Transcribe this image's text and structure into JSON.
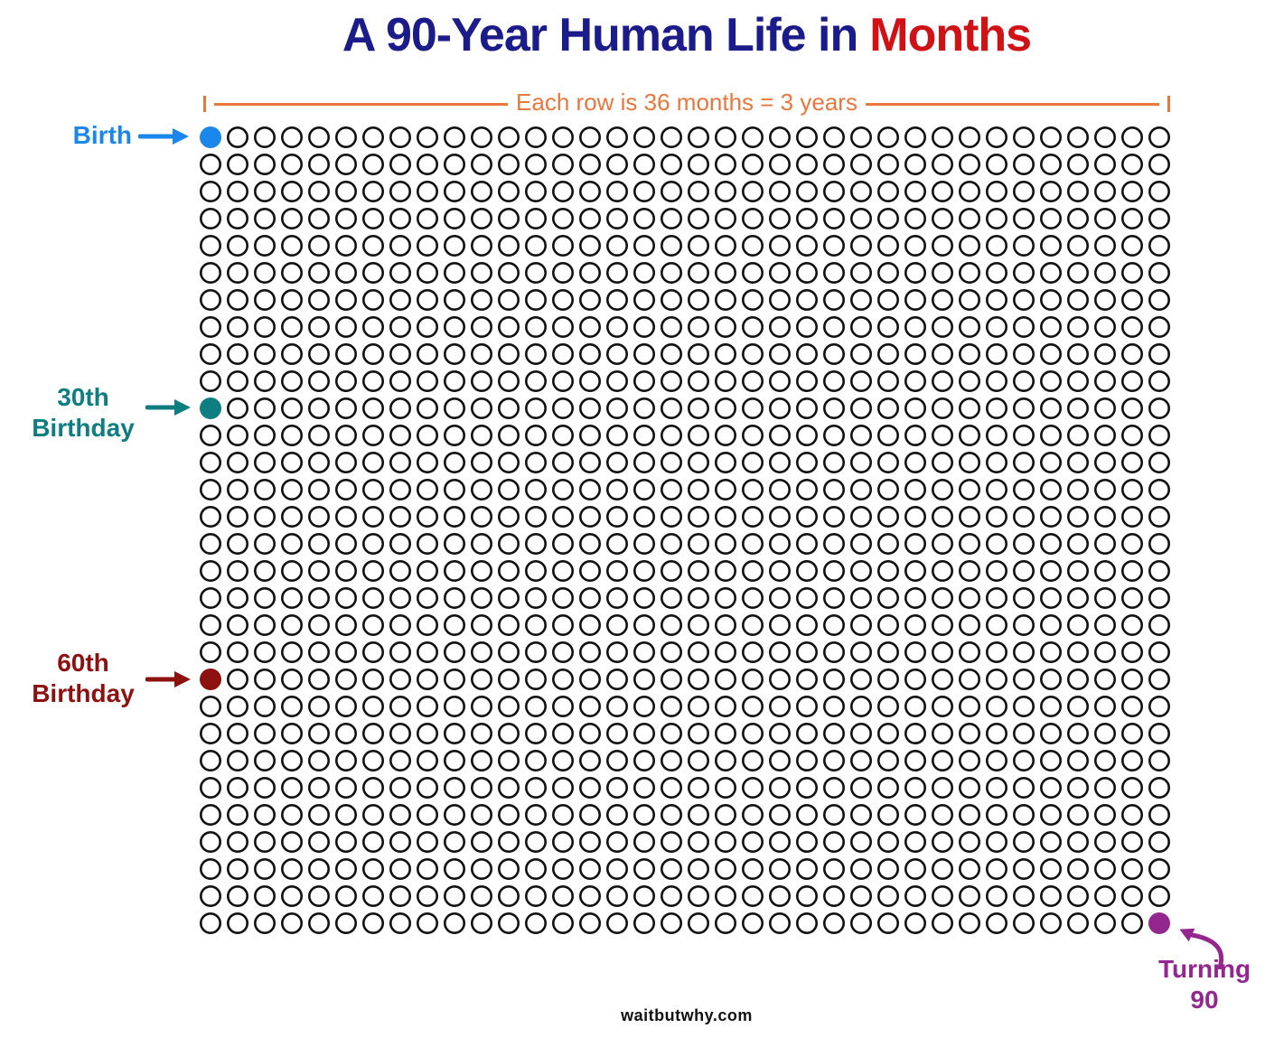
{
  "title": {
    "prefix": "A 90-Year Human Life in",
    "accent": "Months"
  },
  "colors": {
    "title_navy": "#1B1B8A",
    "title_red": "#D01217",
    "ruler_orange": "#E8773C",
    "circle_outline": "#111111",
    "footer_black": "#111111",
    "background": "#FFFFFF"
  },
  "ruler": {
    "label": "Each row is 36 months = 3 years"
  },
  "annotations": {
    "birth": {
      "label": "Birth",
      "color": "#1B87EA",
      "month_index": 0
    },
    "thirty": {
      "line1": "30th",
      "line2": "Birthday",
      "color": "#0F7E80",
      "month_index": 360
    },
    "sixty": {
      "line1": "60th",
      "line2": "Birthday",
      "color": "#8E1111",
      "month_index": 720
    },
    "ninety": {
      "line1": "Turning",
      "line2": "90",
      "color": "#93278F",
      "month_index": 1079
    }
  },
  "footer": {
    "text": "waitbutwhy.com"
  },
  "chart_data": {
    "type": "waffle",
    "title": "A 90-Year Human Life in Months",
    "unit": "1 circle = 1 month",
    "rows": 30,
    "columns": 36,
    "months_per_row": 36,
    "years_per_row": 3,
    "total_months": 1080,
    "total_years": 90,
    "row_caption": "Each row is 36 months = 3 years",
    "legend_position": "none",
    "grid": "off",
    "highlights": [
      {
        "label": "Birth",
        "month_index": 0,
        "row": 1,
        "column": 1,
        "color": "#1B87EA"
      },
      {
        "label": "30th Birthday",
        "month_index": 360,
        "row": 11,
        "column": 1,
        "color": "#0F7E80"
      },
      {
        "label": "60th Birthday",
        "month_index": 720,
        "row": 21,
        "column": 1,
        "color": "#8E1111"
      },
      {
        "label": "Turning 90",
        "month_index": 1079,
        "row": 30,
        "column": 36,
        "color": "#93278F"
      }
    ]
  }
}
